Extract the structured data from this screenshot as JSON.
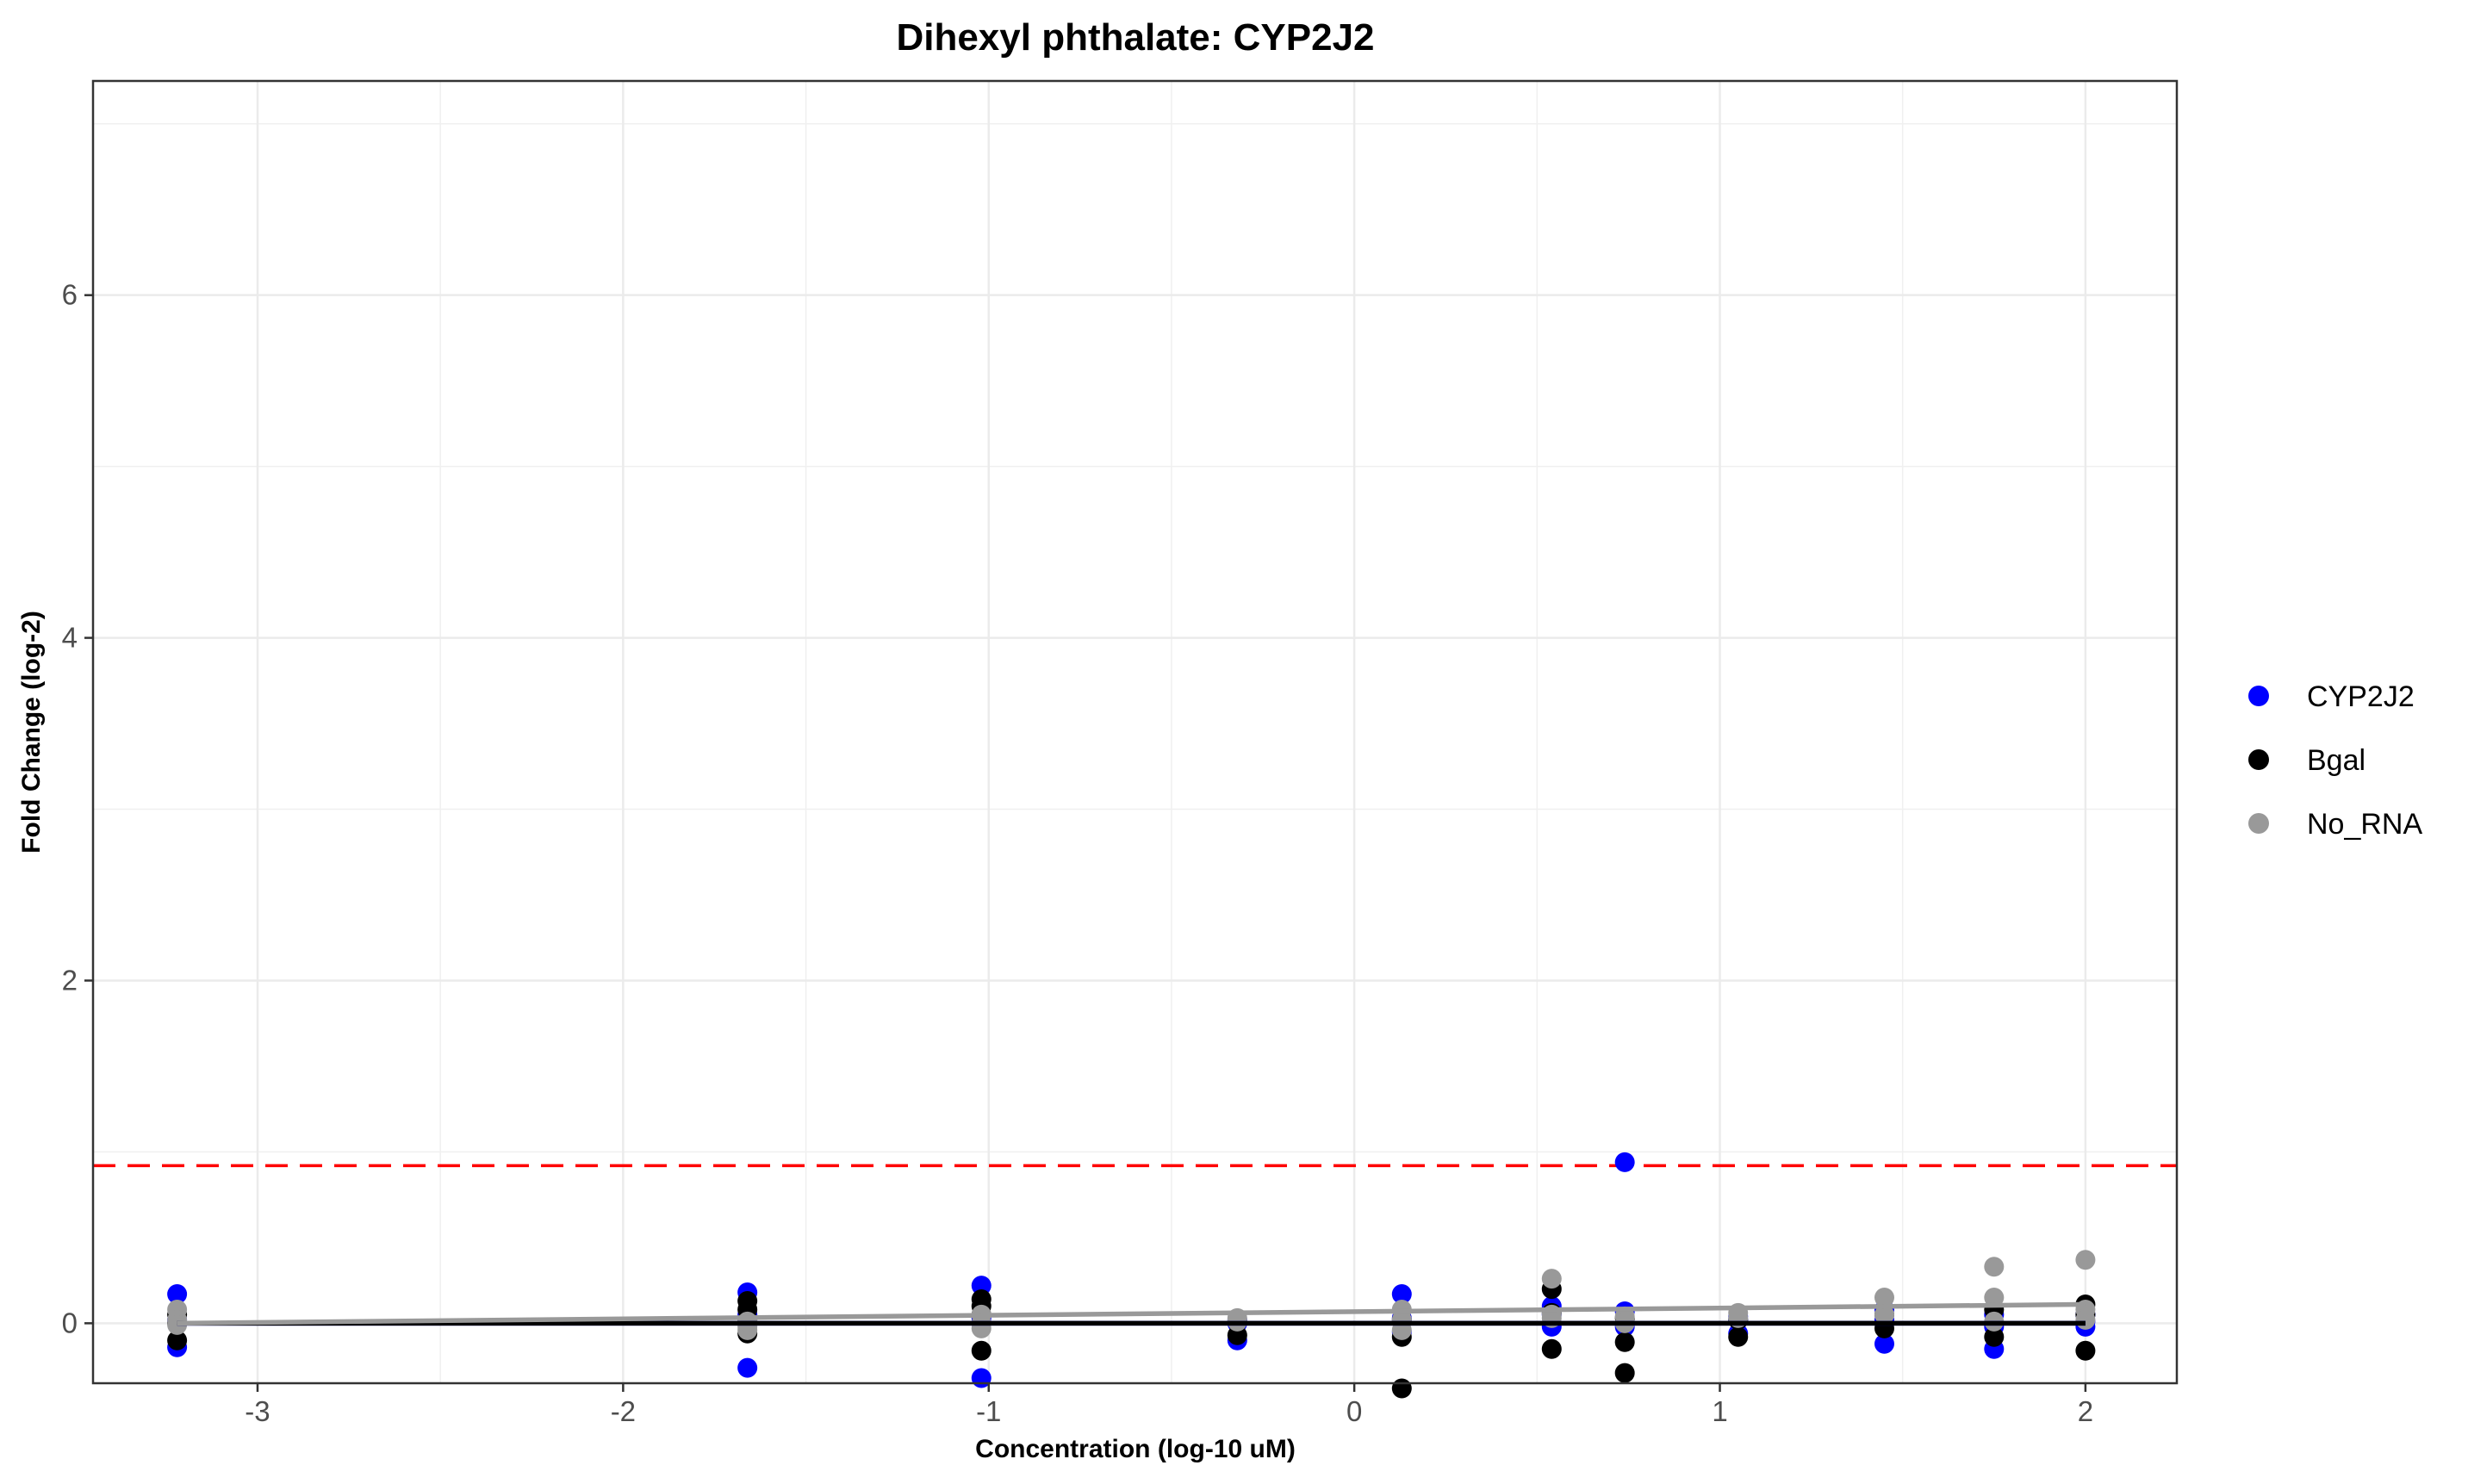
{
  "chart_data": {
    "type": "scatter",
    "title": "Dihexyl phthalate: CYP2J2",
    "xlabel": "Concentration (log-10 uM)",
    "ylabel": "Fold Change (log-2)",
    "xlim": [
      -3.45,
      2.25
    ],
    "ylim": [
      -0.35,
      7.25
    ],
    "x_ticks": [
      -3,
      -2,
      -1,
      0,
      1,
      2
    ],
    "x_tick_labels": [
      "-3",
      "-2",
      "-1",
      "0",
      "1",
      "2"
    ],
    "y_ticks": [
      0,
      2,
      4,
      6
    ],
    "y_tick_labels": [
      "0",
      "2",
      "4",
      "6"
    ],
    "grid": true,
    "legend_position": "right",
    "threshold": {
      "y": 0.92,
      "color": "#ff0000",
      "style": "dashed"
    },
    "series": [
      {
        "name": "CYP2J2",
        "color": "#0000ff",
        "points": [
          [
            -3.22,
            0.17
          ],
          [
            -3.22,
            -0.14
          ],
          [
            -3.22,
            0.02
          ],
          [
            -1.66,
            0.18
          ],
          [
            -1.66,
            -0.26
          ],
          [
            -1.66,
            0.05
          ],
          [
            -1.02,
            0.22
          ],
          [
            -1.02,
            -0.32
          ],
          [
            -1.02,
            0.03
          ],
          [
            -0.32,
            -0.1
          ],
          [
            -0.32,
            0.02
          ],
          [
            -0.32,
            0.0
          ],
          [
            0.13,
            0.17
          ],
          [
            0.13,
            -0.05
          ],
          [
            0.13,
            0.03
          ],
          [
            0.54,
            0.1
          ],
          [
            0.54,
            -0.02
          ],
          [
            0.54,
            0.05
          ],
          [
            0.74,
            0.94
          ],
          [
            0.74,
            0.07
          ],
          [
            0.74,
            -0.02
          ],
          [
            1.05,
            -0.06
          ],
          [
            1.05,
            0.02
          ],
          [
            1.05,
            0.04
          ],
          [
            1.45,
            -0.12
          ],
          [
            1.45,
            0.08
          ],
          [
            1.45,
            0.02
          ],
          [
            1.75,
            -0.15
          ],
          [
            1.75,
            0.05
          ],
          [
            1.75,
            -0.02
          ],
          [
            2.0,
            -0.02
          ],
          [
            2.0,
            0.05
          ],
          [
            2.0,
            0.01
          ]
        ],
        "fit": [
          [
            -3.22,
            0.0
          ],
          [
            2.0,
            0.0
          ]
        ]
      },
      {
        "name": "Bgal",
        "color": "#000000",
        "points": [
          [
            -3.22,
            -0.1
          ],
          [
            -3.22,
            0.05
          ],
          [
            -3.22,
            0.0
          ],
          [
            -1.66,
            0.13
          ],
          [
            -1.66,
            0.08
          ],
          [
            -1.66,
            -0.06
          ],
          [
            -1.66,
            0.02
          ],
          [
            -1.02,
            0.14
          ],
          [
            -1.02,
            0.1
          ],
          [
            -1.02,
            -0.16
          ],
          [
            -1.02,
            0.05
          ],
          [
            -0.32,
            -0.07
          ],
          [
            -0.32,
            0.01
          ],
          [
            0.13,
            -0.38
          ],
          [
            0.13,
            -0.08
          ],
          [
            0.13,
            0.02
          ],
          [
            0.54,
            0.2
          ],
          [
            0.54,
            -0.15
          ],
          [
            0.54,
            0.06
          ],
          [
            0.74,
            -0.11
          ],
          [
            0.74,
            -0.29
          ],
          [
            0.74,
            0.03
          ],
          [
            1.05,
            -0.08
          ],
          [
            1.05,
            0.02
          ],
          [
            1.45,
            0.05
          ],
          [
            1.45,
            -0.03
          ],
          [
            1.75,
            -0.08
          ],
          [
            1.75,
            0.08
          ],
          [
            2.0,
            0.11
          ],
          [
            2.0,
            -0.16
          ],
          [
            2.0,
            0.05
          ]
        ],
        "fit": [
          [
            -3.22,
            0.0
          ],
          [
            2.0,
            0.0
          ]
        ]
      },
      {
        "name": "No_RNA",
        "color": "#999999",
        "points": [
          [
            -3.22,
            0.08
          ],
          [
            -3.22,
            0.02
          ],
          [
            -3.22,
            -0.01
          ],
          [
            -1.66,
            -0.02
          ],
          [
            -1.66,
            -0.04
          ],
          [
            -1.66,
            0.01
          ],
          [
            -1.02,
            0.05
          ],
          [
            -1.02,
            0.0
          ],
          [
            -1.02,
            -0.03
          ],
          [
            -0.32,
            0.03
          ],
          [
            -0.32,
            0.01
          ],
          [
            0.13,
            0.08
          ],
          [
            0.13,
            -0.04
          ],
          [
            0.13,
            0.02
          ],
          [
            0.54,
            0.26
          ],
          [
            0.54,
            0.03
          ],
          [
            0.54,
            0.05
          ],
          [
            0.74,
            0.04
          ],
          [
            0.74,
            0.0
          ],
          [
            1.05,
            0.06
          ],
          [
            1.05,
            0.03
          ],
          [
            1.45,
            0.15
          ],
          [
            1.45,
            0.05
          ],
          [
            1.75,
            0.33
          ],
          [
            1.75,
            0.15
          ],
          [
            1.75,
            0.01
          ],
          [
            2.0,
            0.37
          ],
          [
            2.0,
            0.08
          ],
          [
            2.0,
            0.02
          ]
        ],
        "fit": [
          [
            -3.22,
            0.0
          ],
          [
            2.0,
            0.11
          ]
        ]
      }
    ]
  }
}
